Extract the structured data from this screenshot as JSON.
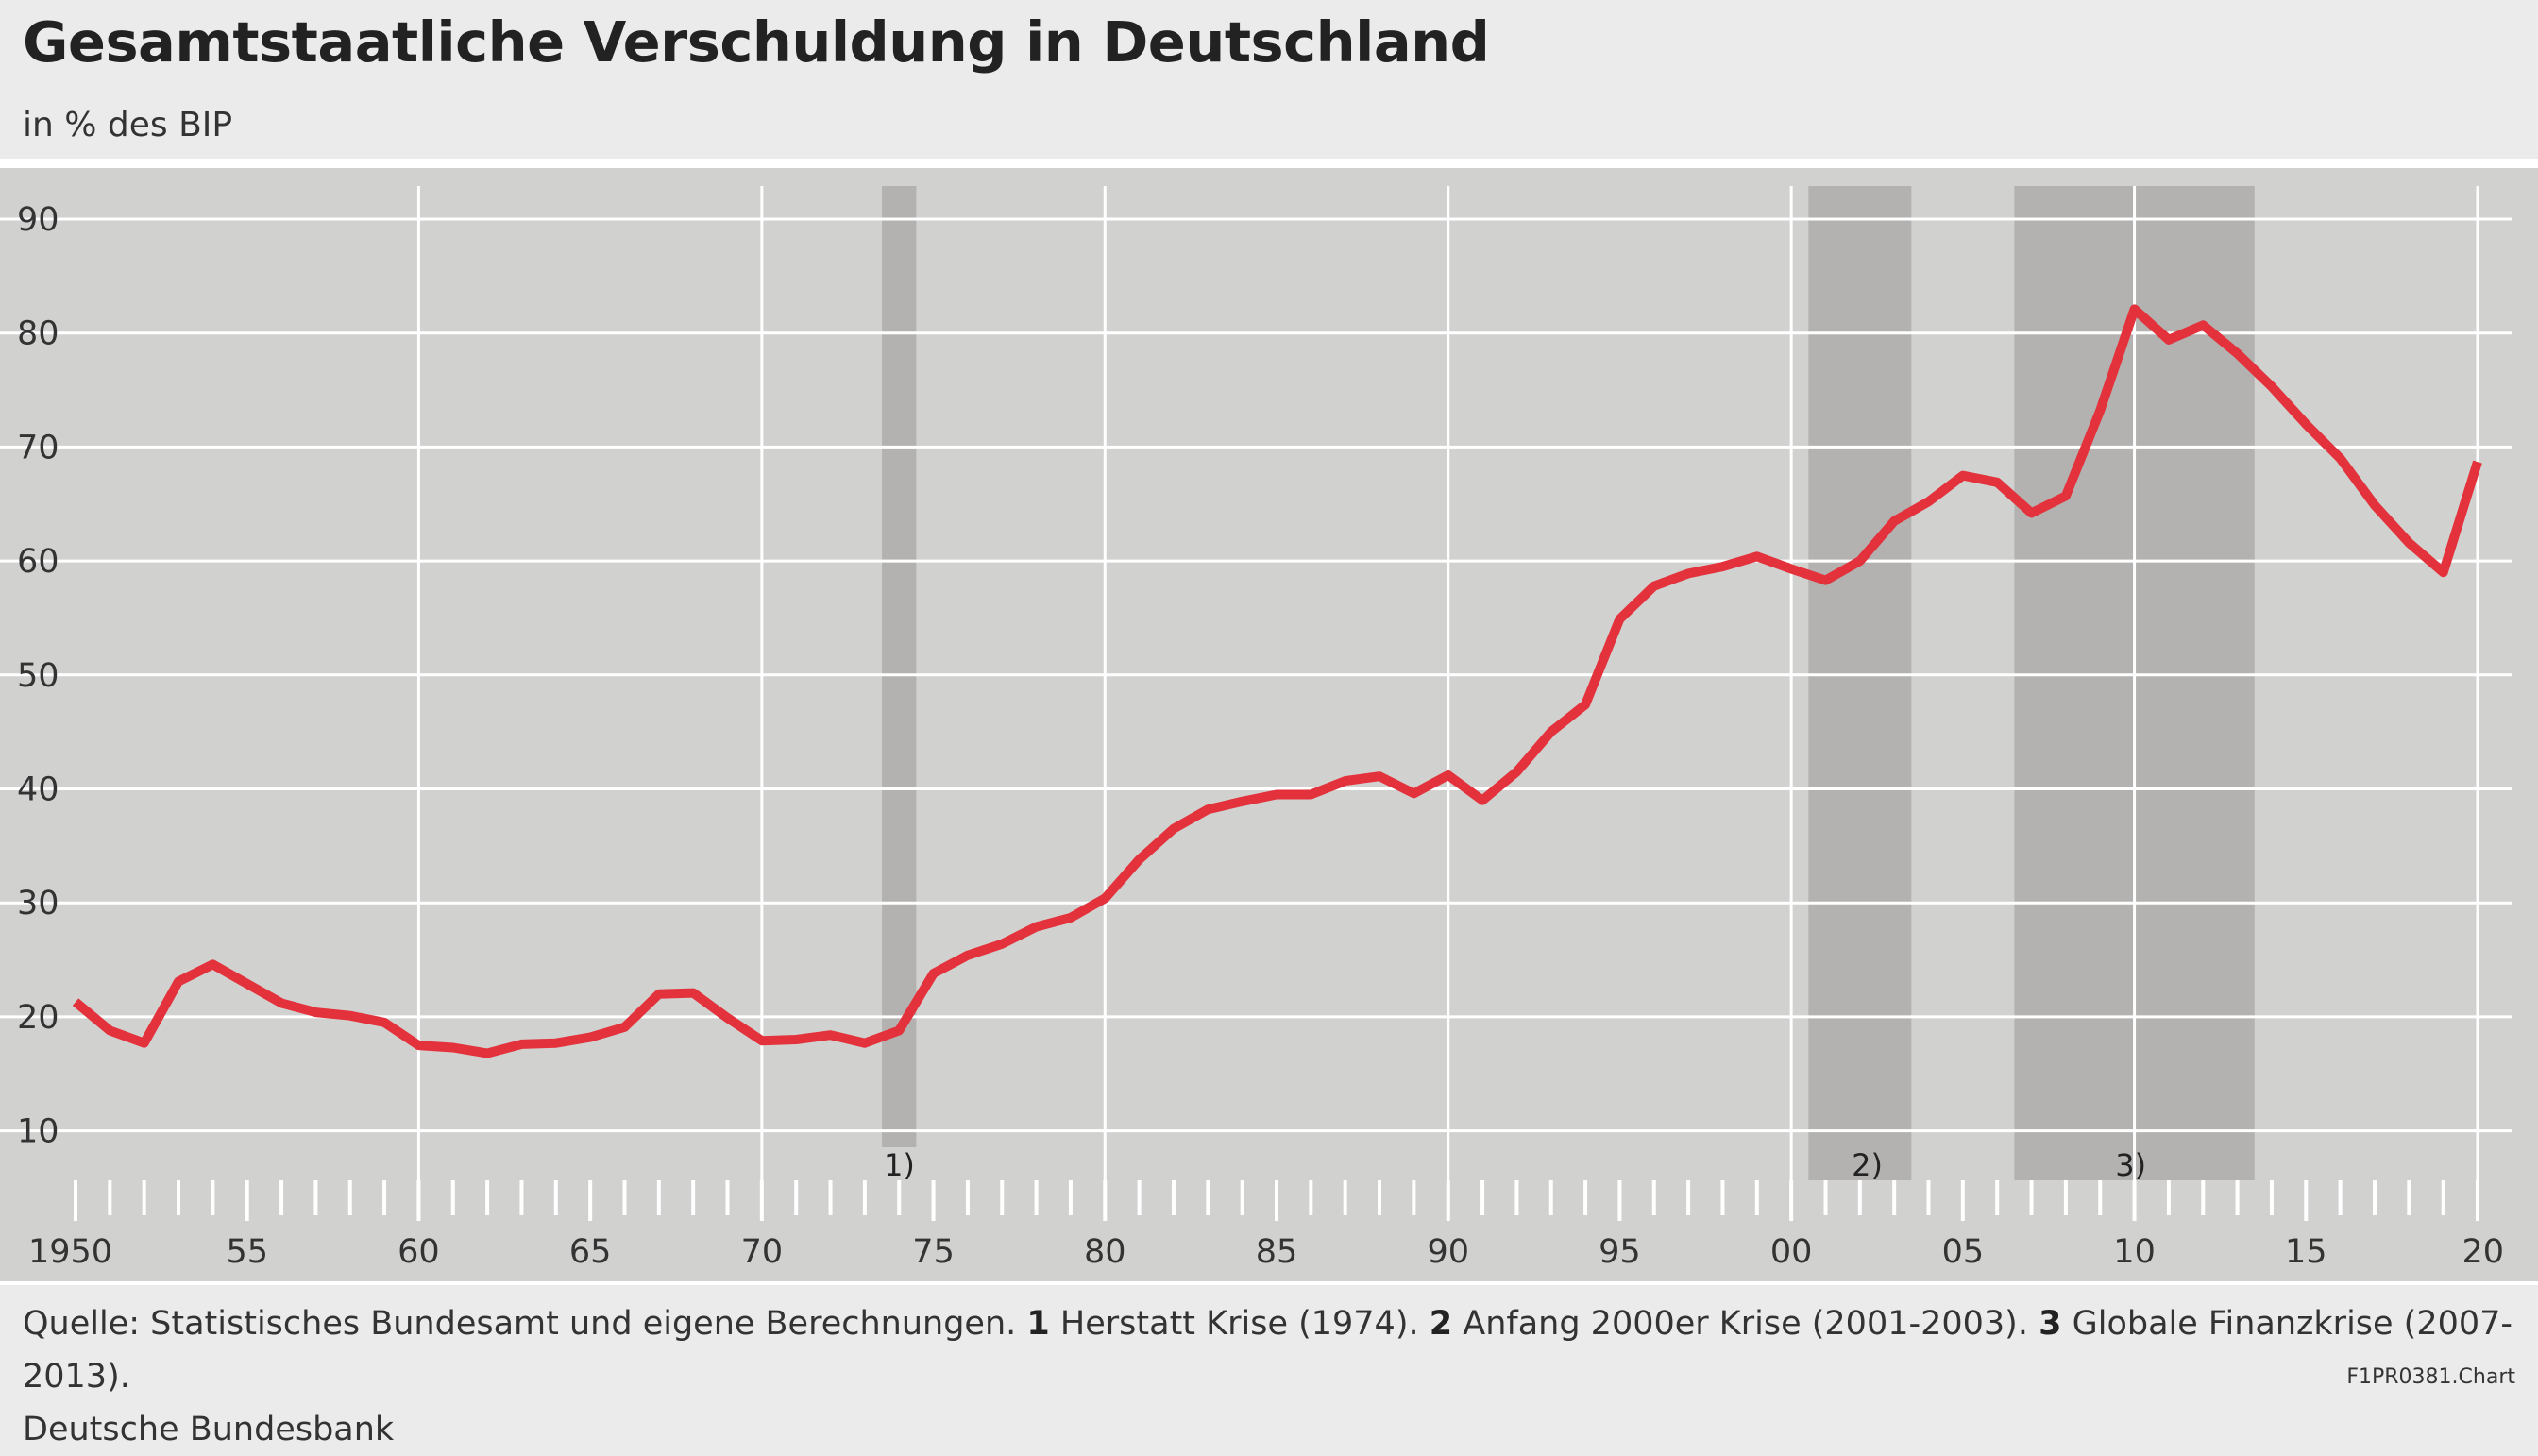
{
  "header": {
    "title": "Gesamtstaatliche Verschuldung in Deutschland",
    "subtitle": "in % des BIP"
  },
  "footer": {
    "source_lead": "Quelle: Statistisches Bundesamt und eigene Berechnungen.",
    "note1_num": "1",
    "note1_text": "Herstatt Krise (1974).",
    "note2_num": "2",
    "note2_text": "Anfang 2000er Krise (2001-2003).",
    "note3_num": "3",
    "note3_text": "Globale Finanzkrise (2007-2013).",
    "publisher": "Deutsche Bundesbank",
    "code": "F1PR0381.Chart"
  },
  "chart_data": {
    "type": "line",
    "title": "Gesamtstaatliche Verschuldung in Deutschland",
    "ylabel": "in % des BIP",
    "xlim": [
      1950,
      2020
    ],
    "ylim": [
      5,
      93
    ],
    "y_ticks": [
      10,
      20,
      30,
      40,
      50,
      60,
      70,
      80,
      90
    ],
    "x_tick_labels": [
      {
        "year": 1950,
        "label": "1950"
      },
      {
        "year": 1955,
        "label": "55"
      },
      {
        "year": 1960,
        "label": "60"
      },
      {
        "year": 1965,
        "label": "65"
      },
      {
        "year": 1970,
        "label": "70"
      },
      {
        "year": 1975,
        "label": "75"
      },
      {
        "year": 1980,
        "label": "80"
      },
      {
        "year": 1985,
        "label": "85"
      },
      {
        "year": 1990,
        "label": "90"
      },
      {
        "year": 1995,
        "label": "95"
      },
      {
        "year": 2000,
        "label": "00"
      },
      {
        "year": 2005,
        "label": "05"
      },
      {
        "year": 2010,
        "label": "10"
      },
      {
        "year": 2015,
        "label": "15"
      },
      {
        "year": 2020,
        "label": "20"
      }
    ],
    "grid": true,
    "line_color": "#e3323b",
    "band_color": "#b3b2b1",
    "crisis_bands": [
      {
        "label": "1)",
        "from": 1973.5,
        "to": 1974.5
      },
      {
        "label": "2)",
        "from": 2000.5,
        "to": 2003.5
      },
      {
        "label": "3)",
        "from": 2006.5,
        "to": 2013.5
      }
    ],
    "series": [
      {
        "values": [
          {
            "x": 1950,
            "y": 21.3
          },
          {
            "x": 1951,
            "y": 18.8
          },
          {
            "x": 1952,
            "y": 17.7
          },
          {
            "x": 1953,
            "y": 23.1
          },
          {
            "x": 1954,
            "y": 24.6
          },
          {
            "x": 1955,
            "y": 22.9
          },
          {
            "x": 1956,
            "y": 21.2
          },
          {
            "x": 1957,
            "y": 20.4
          },
          {
            "x": 1958,
            "y": 20.1
          },
          {
            "x": 1959,
            "y": 19.5
          },
          {
            "x": 1960,
            "y": 17.5
          },
          {
            "x": 1961,
            "y": 17.3
          },
          {
            "x": 1962,
            "y": 16.8
          },
          {
            "x": 1963,
            "y": 17.6
          },
          {
            "x": 1964,
            "y": 17.7
          },
          {
            "x": 1965,
            "y": 18.2
          },
          {
            "x": 1966,
            "y": 19.1
          },
          {
            "x": 1967,
            "y": 22.0
          },
          {
            "x": 1968,
            "y": 22.1
          },
          {
            "x": 1969,
            "y": 19.9
          },
          {
            "x": 1970,
            "y": 17.9
          },
          {
            "x": 1971,
            "y": 18.0
          },
          {
            "x": 1972,
            "y": 18.4
          },
          {
            "x": 1973,
            "y": 17.7
          },
          {
            "x": 1974,
            "y": 18.8
          },
          {
            "x": 1975,
            "y": 23.8
          },
          {
            "x": 1976,
            "y": 25.4
          },
          {
            "x": 1977,
            "y": 26.4
          },
          {
            "x": 1978,
            "y": 27.9
          },
          {
            "x": 1979,
            "y": 28.7
          },
          {
            "x": 1980,
            "y": 30.4
          },
          {
            "x": 1981,
            "y": 33.8
          },
          {
            "x": 1982,
            "y": 36.5
          },
          {
            "x": 1983,
            "y": 38.2
          },
          {
            "x": 1984,
            "y": 38.9
          },
          {
            "x": 1985,
            "y": 39.5
          },
          {
            "x": 1986,
            "y": 39.5
          },
          {
            "x": 1987,
            "y": 40.7
          },
          {
            "x": 1988,
            "y": 41.1
          },
          {
            "x": 1989,
            "y": 39.6
          },
          {
            "x": 1990,
            "y": 41.2
          },
          {
            "x": 1991,
            "y": 39.0
          },
          {
            "x": 1992,
            "y": 41.5
          },
          {
            "x": 1993,
            "y": 45.0
          },
          {
            "x": 1994,
            "y": 47.4
          },
          {
            "x": 1995,
            "y": 54.9
          },
          {
            "x": 1996,
            "y": 57.8
          },
          {
            "x": 1997,
            "y": 58.9
          },
          {
            "x": 1998,
            "y": 59.5
          },
          {
            "x": 1999,
            "y": 60.4
          },
          {
            "x": 2000,
            "y": 59.3
          },
          {
            "x": 2001,
            "y": 58.3
          },
          {
            "x": 2002,
            "y": 60.0
          },
          {
            "x": 2003,
            "y": 63.5
          },
          {
            "x": 2004,
            "y": 65.2
          },
          {
            "x": 2005,
            "y": 67.5
          },
          {
            "x": 2006,
            "y": 66.9
          },
          {
            "x": 2007,
            "y": 64.2
          },
          {
            "x": 2008,
            "y": 65.7
          },
          {
            "x": 2009,
            "y": 73.2
          },
          {
            "x": 2010,
            "y": 82.1
          },
          {
            "x": 2011,
            "y": 79.4
          },
          {
            "x": 2012,
            "y": 80.7
          },
          {
            "x": 2013,
            "y": 78.2
          },
          {
            "x": 2014,
            "y": 75.3
          },
          {
            "x": 2015,
            "y": 72.0
          },
          {
            "x": 2016,
            "y": 69.0
          },
          {
            "x": 2017,
            "y": 64.9
          },
          {
            "x": 2018,
            "y": 61.6
          },
          {
            "x": 2019,
            "y": 59.0
          },
          {
            "x": 2020,
            "y": 68.7
          }
        ]
      }
    ]
  }
}
